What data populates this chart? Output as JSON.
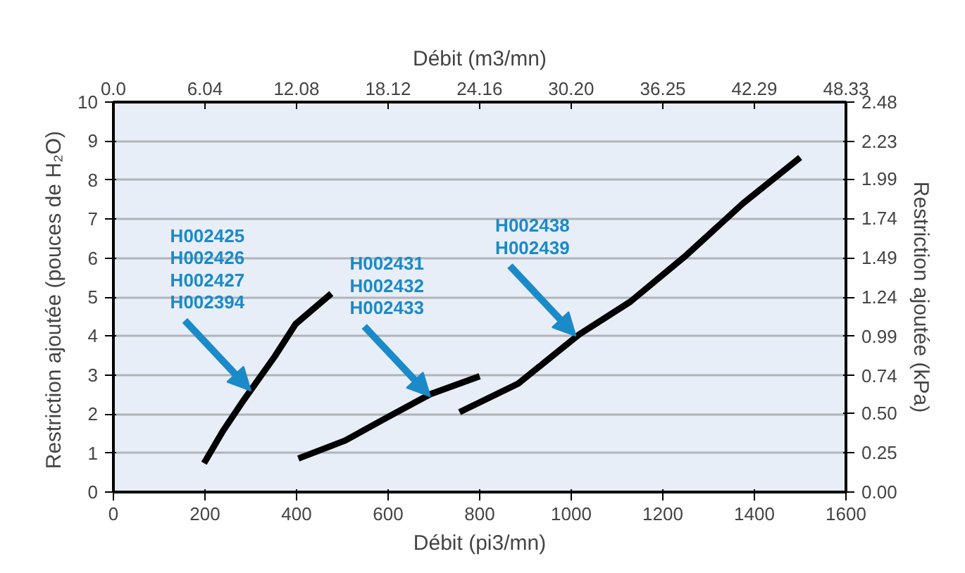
{
  "chart_data": {
    "type": "line",
    "x2label": "Débit (m3/mn)",
    "xlabel": "Débit (pi3/mn)",
    "ylabel": "Restriction ajoutée  (pouces de H₂O)",
    "y2label": "Restriction ajoutée (kPa)",
    "xlim": [
      0,
      1600
    ],
    "xticks": [
      0,
      200,
      400,
      600,
      800,
      1000,
      1200,
      1400,
      1600
    ],
    "x2lim": [
      0,
      48.33
    ],
    "x2ticks": [
      {
        "value": 0,
        "label": "0.0"
      },
      6.04,
      12.08,
      18.12,
      24.16,
      {
        "value": 30.2,
        "label": "30.20"
      },
      36.25,
      42.29,
      48.33
    ],
    "ylim": [
      0,
      10
    ],
    "yticks": [
      0,
      1,
      2,
      3,
      4,
      5,
      6,
      7,
      8,
      9,
      10
    ],
    "y2lim": [
      0,
      2.48
    ],
    "y2ticks": [
      {
        "value": 0,
        "label": "0.00"
      },
      0.25,
      {
        "value": 0.5,
        "label": "0.50"
      },
      0.74,
      0.99,
      1.24,
      1.49,
      1.74,
      1.99,
      2.23,
      2.48
    ],
    "grid": "y",
    "line_style": "solid",
    "marker": "none",
    "series": [
      {
        "color": "#000000",
        "x": [
          198,
          239,
          280,
          352,
          398,
          476
        ],
        "values": [
          0.74,
          1.56,
          2.28,
          3.47,
          4.31,
          5.09
        ]
      },
      {
        "color": "#000000",
        "x": [
          404,
          506,
          599,
          692,
          800
        ],
        "values": [
          0.86,
          1.32,
          1.92,
          2.51,
          2.97
        ]
      },
      {
        "color": "#000000",
        "x": [
          756,
          884,
          1017,
          1129,
          1252,
          1375,
          1500
        ],
        "values": [
          2.05,
          2.78,
          4.04,
          4.88,
          6.08,
          7.4,
          8.58
        ]
      }
    ],
    "annotations": [
      {
        "text": "H002425\nH002426\nH002427\nH002394",
        "x": 300,
        "y": 2.6
      },
      {
        "text": "H002431\nH002432\nH002433",
        "x": 692,
        "y": 2.45
      },
      {
        "text": "H002438\nH002439",
        "x": 1010,
        "y": 4.0
      }
    ]
  }
}
